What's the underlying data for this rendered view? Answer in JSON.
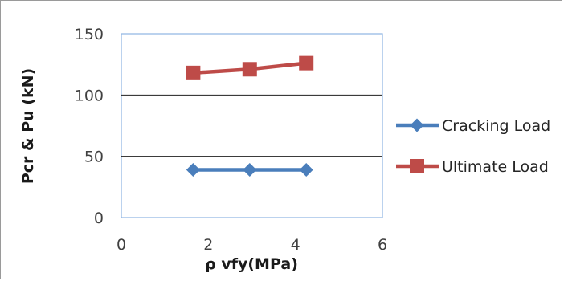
{
  "chart_data": {
    "type": "line",
    "title": "",
    "xlabel": "ρ vfy(MPa)",
    "ylabel": "Pcr & Pu (kN)",
    "xlim": [
      0,
      6
    ],
    "ylim": [
      0,
      150
    ],
    "x_ticks": [
      0,
      2,
      4,
      6
    ],
    "y_ticks": [
      0,
      50,
      100,
      150
    ],
    "grid": {
      "horizontal": true,
      "vertical": false
    },
    "legend_position": "right",
    "series": [
      {
        "name": "Cracking Load",
        "color": "#4a7ebb",
        "marker": "diamond",
        "x": [
          1.65,
          2.95,
          4.25
        ],
        "y": [
          39,
          39,
          39
        ]
      },
      {
        "name": "Ultimate Load",
        "color": "#be4b48",
        "marker": "square",
        "x": [
          1.65,
          2.95,
          4.25
        ],
        "y": [
          118,
          121,
          126
        ]
      }
    ]
  }
}
